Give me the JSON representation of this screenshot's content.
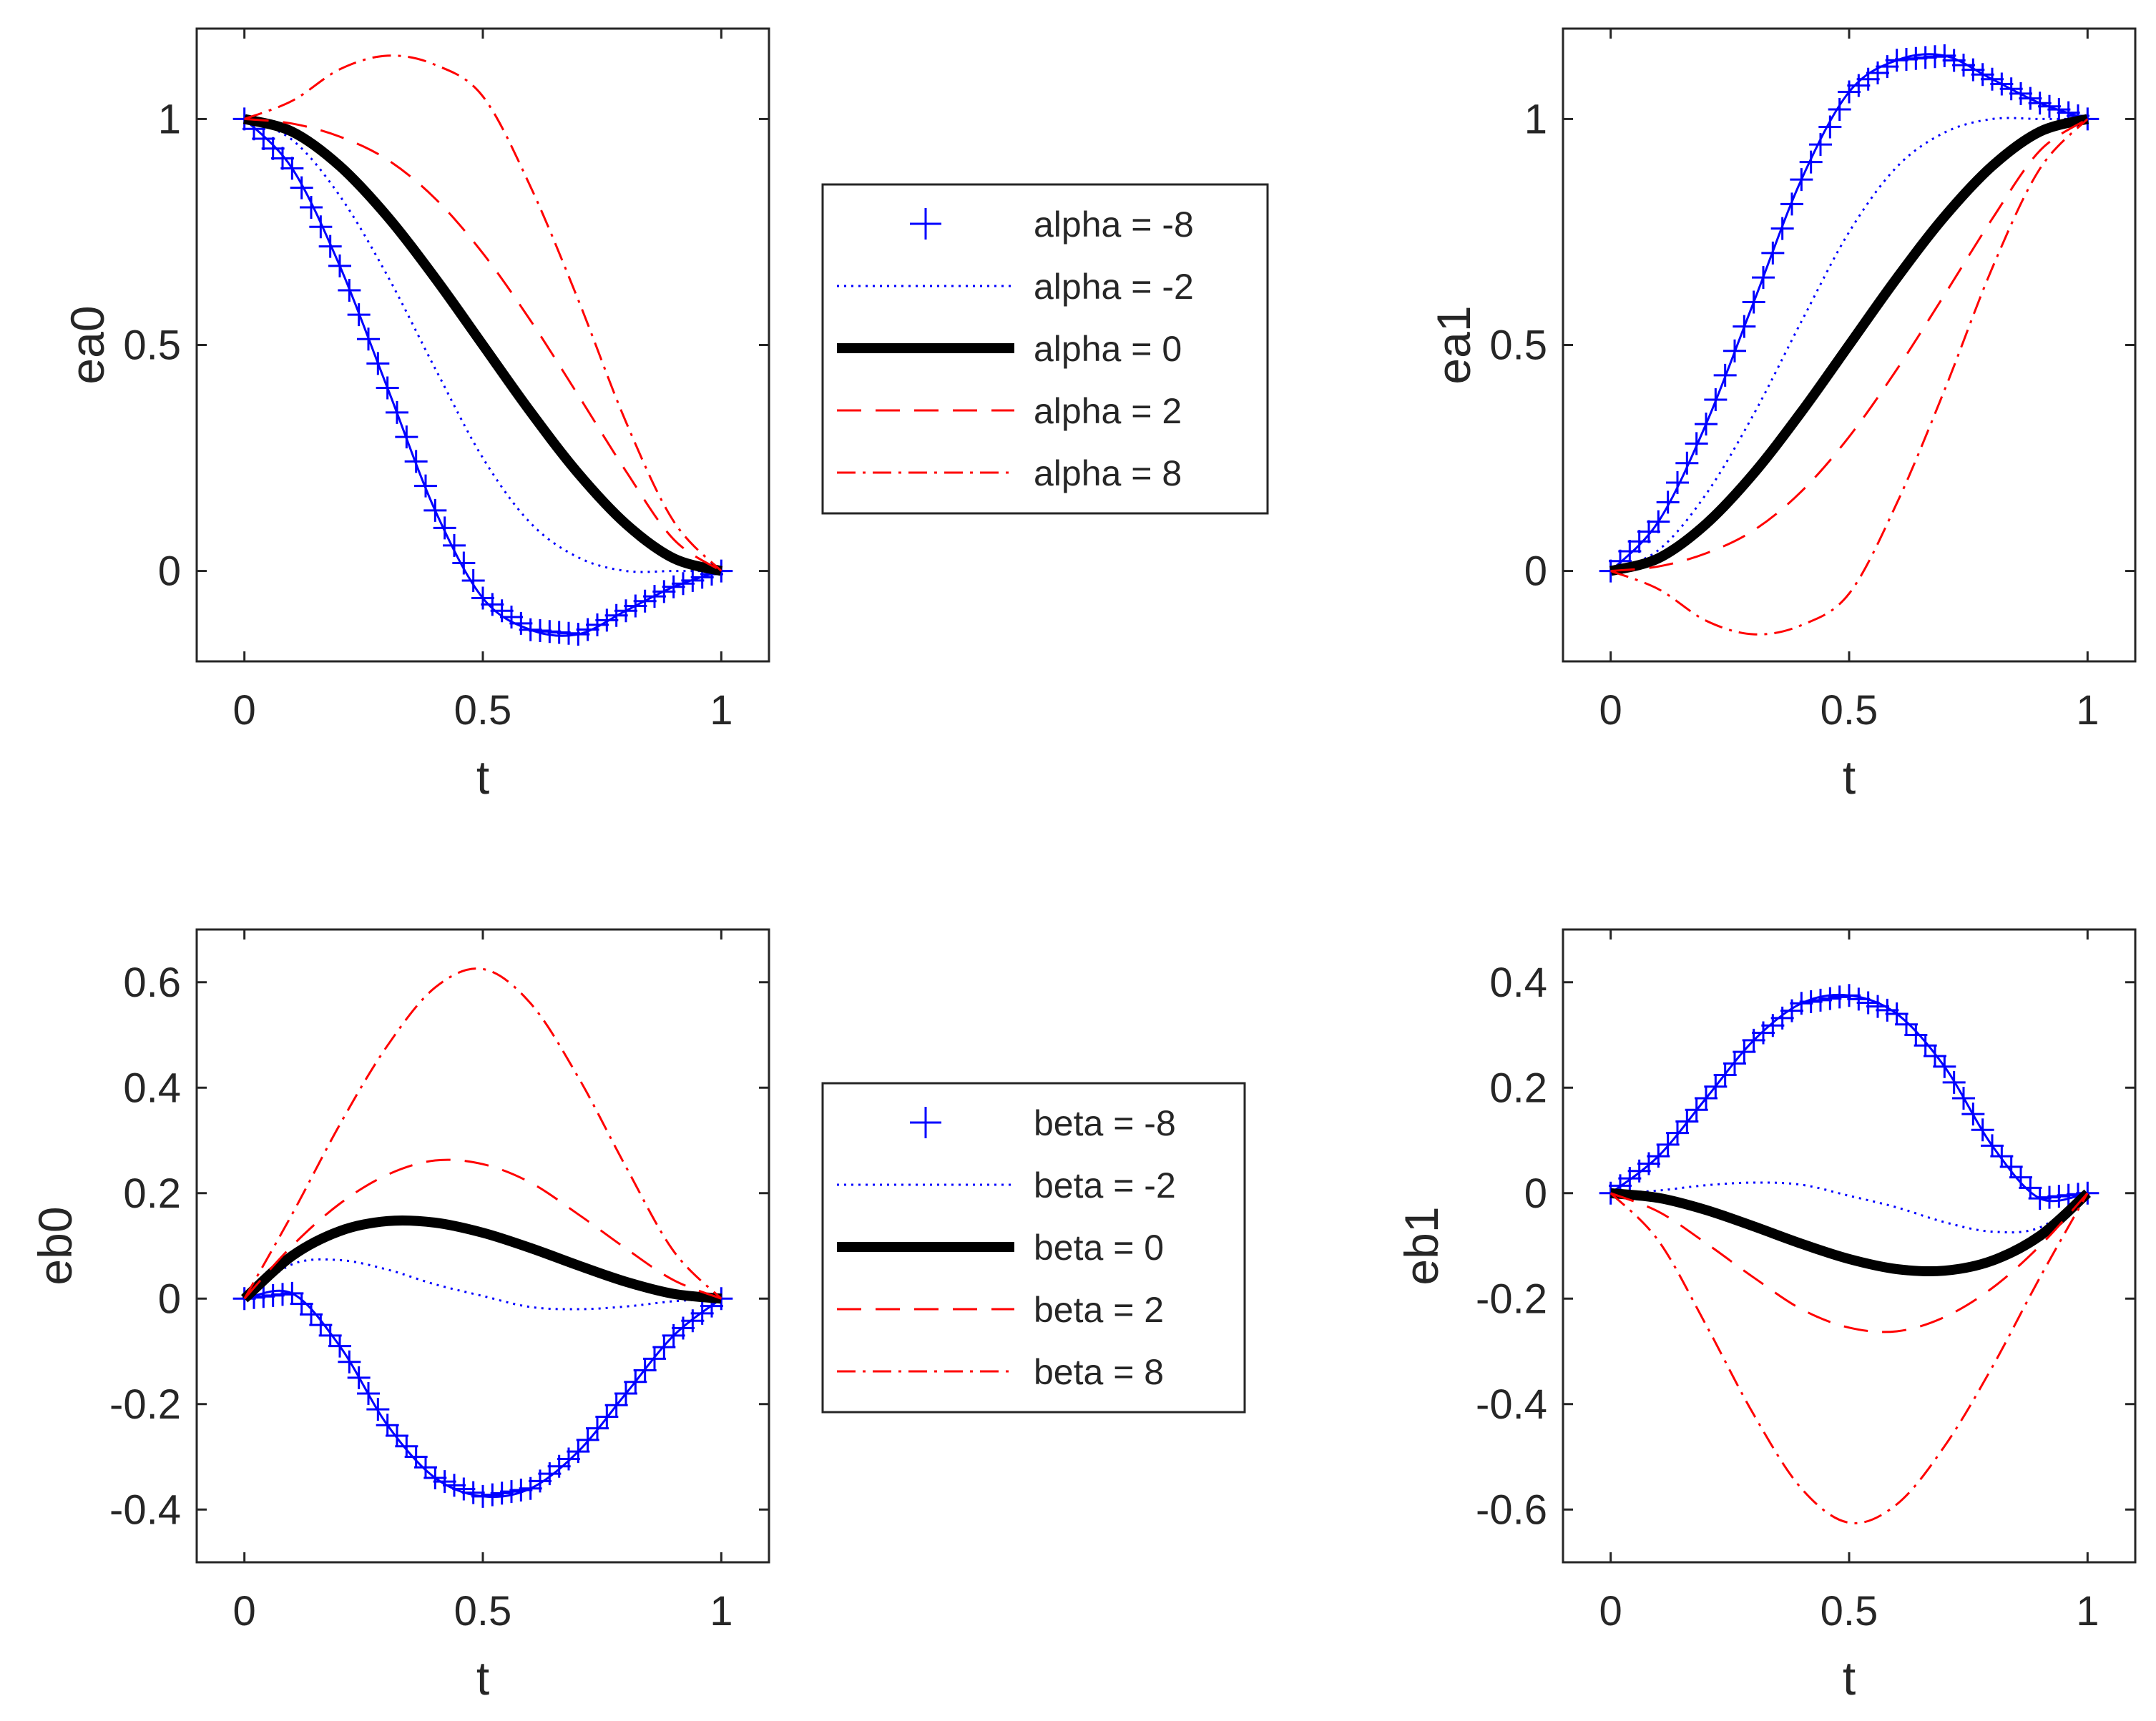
{
  "colors": {
    "blue": "#0000ff",
    "black": "#000000",
    "red": "#ff0000",
    "axis": "#262626"
  },
  "line_styles": [
    {
      "color": "#0000ff",
      "dash": "none",
      "width": 3,
      "marker": "plus"
    },
    {
      "color": "#0000ff",
      "dash": "3,7",
      "width": 3,
      "marker": "none"
    },
    {
      "color": "#000000",
      "dash": "none",
      "width": 14,
      "marker": "none"
    },
    {
      "color": "#ff0000",
      "dash": "34,20",
      "width": 3,
      "marker": "none"
    },
    {
      "color": "#ff0000",
      "dash": "26,10,4,10",
      "width": 3,
      "marker": "none"
    }
  ],
  "legends": {
    "alpha": [
      "alpha = -8",
      "alpha = -2",
      "alpha = 0",
      "alpha = 2",
      "alpha = 8"
    ],
    "beta": [
      "beta = -8",
      "beta = -2",
      "beta = 0",
      "beta = 2",
      "beta = 8"
    ]
  },
  "chart_data": [
    {
      "type": "line",
      "id": "ea0",
      "ylabel": "ea0",
      "xlabel": "t",
      "xlim": [
        -0.1,
        1.1
      ],
      "ylim": [
        -0.2,
        1.2
      ],
      "xticks": [
        0,
        0.5,
        1
      ],
      "xtick_labels": [
        "0",
        "0.5",
        "1"
      ],
      "yticks": [
        0,
        0.5,
        1
      ],
      "ytick_labels": [
        "0",
        "0.5",
        "1"
      ],
      "legend": "alpha",
      "legend_position": "right",
      "x": [
        0,
        0.1,
        0.2,
        0.3,
        0.4,
        0.5,
        0.6,
        0.7,
        0.8,
        0.9,
        1
      ],
      "series": [
        {
          "name": "alpha = -8",
          "values": [
            1,
            0.891,
            0.675,
            0.405,
            0.134,
            -0.06,
            -0.13,
            -0.14,
            -0.088,
            -0.035,
            0
          ]
        },
        {
          "name": "alpha = -2",
          "values": [
            1,
            0.954,
            0.83,
            0.653,
            0.448,
            0.25,
            0.106,
            0.03,
            0.0,
            0.0,
            0
          ]
        },
        {
          "name": "alpha = 0",
          "values": [
            1,
            0.972,
            0.896,
            0.784,
            0.648,
            0.5,
            0.352,
            0.216,
            0.104,
            0.028,
            0
          ]
        },
        {
          "name": "alpha = 2",
          "values": [
            1,
            0.99,
            0.961,
            0.91,
            0.824,
            0.703,
            0.554,
            0.389,
            0.221,
            0.07,
            0
          ]
        },
        {
          "name": "alpha = 8",
          "values": [
            1,
            1.04,
            1.11,
            1.14,
            1.12,
            1.05,
            0.85,
            0.6,
            0.33,
            0.11,
            0
          ]
        }
      ]
    },
    {
      "type": "line",
      "id": "ea1",
      "ylabel": "ea1",
      "xlabel": "t",
      "xlim": [
        -0.1,
        1.1
      ],
      "ylim": [
        -0.2,
        1.2
      ],
      "xticks": [
        0,
        0.5,
        1
      ],
      "xtick_labels": [
        "0",
        "0.5",
        "1"
      ],
      "yticks": [
        0,
        0.5,
        1
      ],
      "ytick_labels": [
        "0",
        "0.5",
        "1"
      ],
      "x": [
        0,
        0.1,
        0.2,
        0.3,
        0.4,
        0.5,
        0.6,
        0.7,
        0.8,
        0.9,
        1
      ],
      "series": [
        {
          "name": "alpha = -8",
          "values": [
            0,
            0.109,
            0.325,
            0.595,
            0.866,
            1.06,
            1.13,
            1.14,
            1.088,
            1.035,
            1
          ]
        },
        {
          "name": "alpha = -2",
          "values": [
            0,
            0.046,
            0.17,
            0.347,
            0.552,
            0.75,
            0.894,
            0.97,
            1.0,
            1.0,
            1
          ]
        },
        {
          "name": "alpha = 0",
          "values": [
            0,
            0.028,
            0.104,
            0.216,
            0.352,
            0.5,
            0.648,
            0.784,
            0.896,
            0.972,
            1
          ]
        },
        {
          "name": "alpha = 2",
          "values": [
            0,
            0.01,
            0.039,
            0.09,
            0.176,
            0.297,
            0.446,
            0.611,
            0.779,
            0.93,
            1
          ]
        },
        {
          "name": "alpha = 8",
          "values": [
            0,
            -0.04,
            -0.11,
            -0.14,
            -0.12,
            -0.05,
            0.15,
            0.4,
            0.67,
            0.89,
            1
          ]
        }
      ]
    },
    {
      "type": "line",
      "id": "eb0",
      "ylabel": "eb0",
      "xlabel": "t",
      "xlim": [
        -0.1,
        1.1
      ],
      "ylim": [
        -0.5,
        0.7
      ],
      "xticks": [
        0,
        0.5,
        1
      ],
      "xtick_labels": [
        "0",
        "0.5",
        "1"
      ],
      "yticks": [
        -0.4,
        -0.2,
        0,
        0.2,
        0.4,
        0.6
      ],
      "ytick_labels": [
        "-0.4",
        "-0.2",
        "0",
        "0.2",
        "0.4",
        "0.6"
      ],
      "legend": "beta",
      "legend_position": "right",
      "x": [
        0,
        0.1,
        0.2,
        0.3,
        0.4,
        0.5,
        0.6,
        0.7,
        0.8,
        0.9,
        1
      ],
      "series": [
        {
          "name": "beta = -8",
          "values": [
            0,
            0.01,
            -0.09,
            -0.24,
            -0.34,
            -0.375,
            -0.36,
            -0.29,
            -0.18,
            -0.07,
            0
          ]
        },
        {
          "name": "beta = -2",
          "values": [
            0,
            0.065,
            0.073,
            0.055,
            0.027,
            0.005,
            -0.016,
            -0.02,
            -0.015,
            -0.005,
            0
          ]
        },
        {
          "name": "beta = 0",
          "values": [
            0,
            0.081,
            0.128,
            0.147,
            0.144,
            0.125,
            0.096,
            0.063,
            0.032,
            0.009,
            0
          ]
        },
        {
          "name": "beta = 2",
          "values": [
            0,
            0.1,
            0.18,
            0.235,
            0.262,
            0.255,
            0.22,
            0.16,
            0.095,
            0.035,
            0
          ]
        },
        {
          "name": "beta = 8",
          "values": [
            0,
            0.16,
            0.33,
            0.48,
            0.59,
            0.625,
            0.56,
            0.42,
            0.25,
            0.09,
            0
          ]
        }
      ]
    },
    {
      "type": "line",
      "id": "eb1",
      "ylabel": "eb1",
      "xlabel": "t",
      "xlim": [
        -0.1,
        1.1
      ],
      "ylim": [
        -0.7,
        0.5
      ],
      "xticks": [
        0,
        0.5,
        1
      ],
      "xtick_labels": [
        "0",
        "0.5",
        "1"
      ],
      "yticks": [
        -0.6,
        -0.4,
        -0.2,
        0,
        0.2,
        0.4
      ],
      "ytick_labels": [
        "-0.6",
        "-0.4",
        "-0.2",
        "0",
        "0.2",
        "0.4"
      ],
      "x": [
        0,
        0.1,
        0.2,
        0.3,
        0.4,
        0.5,
        0.6,
        0.7,
        0.8,
        0.9,
        1
      ],
      "series": [
        {
          "name": "beta = -8",
          "values": [
            0,
            0.07,
            0.18,
            0.29,
            0.36,
            0.375,
            0.34,
            0.24,
            0.09,
            -0.01,
            0
          ]
        },
        {
          "name": "beta = -2",
          "values": [
            0,
            0.005,
            0.015,
            0.02,
            0.016,
            -0.005,
            -0.027,
            -0.055,
            -0.073,
            -0.065,
            0
          ]
        },
        {
          "name": "beta = 0",
          "values": [
            0,
            -0.009,
            -0.032,
            -0.063,
            -0.096,
            -0.125,
            -0.144,
            -0.147,
            -0.128,
            -0.081,
            0
          ]
        },
        {
          "name": "beta = 2",
          "values": [
            0,
            -0.035,
            -0.095,
            -0.16,
            -0.22,
            -0.255,
            -0.262,
            -0.235,
            -0.18,
            -0.1,
            0
          ]
        },
        {
          "name": "beta = 8",
          "values": [
            0,
            -0.09,
            -0.25,
            -0.42,
            -0.56,
            -0.625,
            -0.59,
            -0.48,
            -0.33,
            -0.16,
            0
          ]
        }
      ]
    }
  ]
}
